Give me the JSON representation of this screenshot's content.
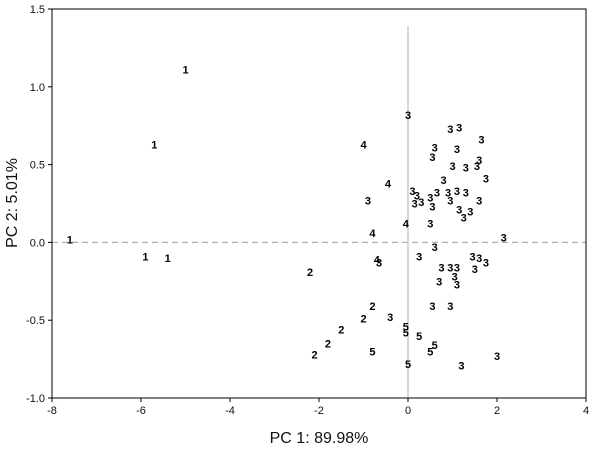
{
  "chart_data": {
    "type": "scatter",
    "title": "",
    "xlabel": "PC 1: 89.98%",
    "ylabel": "PC 2: 5.01%",
    "xlim": [
      -8,
      4
    ],
    "ylim": [
      -1.0,
      1.5
    ],
    "x_ticks": [
      "-8",
      "-6",
      "-4",
      "-2",
      "0",
      "2",
      "4"
    ],
    "y_ticks": [
      "1.5",
      "1.0",
      "0.5",
      "0.0",
      "-0.5",
      "-1.0"
    ],
    "grid": false,
    "reference_lines": {
      "x": 0,
      "y": 0
    },
    "colors": {
      "frame": "#000000",
      "vertical_reference": "#b0b0b0",
      "horizontal_reference": "#b0b0b0",
      "points": "#000000"
    },
    "points": [
      {
        "x": -5.0,
        "y": 1.11,
        "label": "1"
      },
      {
        "x": -5.7,
        "y": 0.63,
        "label": "1"
      },
      {
        "x": -7.6,
        "y": 0.02,
        "label": "1"
      },
      {
        "x": -5.9,
        "y": -0.09,
        "label": "1"
      },
      {
        "x": -5.4,
        "y": -0.1,
        "label": "1"
      },
      {
        "x": -2.2,
        "y": -0.19,
        "label": "2"
      },
      {
        "x": -0.8,
        "y": -0.41,
        "label": "2"
      },
      {
        "x": -1.0,
        "y": -0.49,
        "label": "2"
      },
      {
        "x": -1.5,
        "y": -0.56,
        "label": "2"
      },
      {
        "x": -1.8,
        "y": -0.65,
        "label": "2"
      },
      {
        "x": -2.1,
        "y": -0.72,
        "label": "2"
      },
      {
        "x": -0.4,
        "y": -0.48,
        "label": "3"
      },
      {
        "x": -0.65,
        "y": -0.13,
        "label": "3"
      },
      {
        "x": 0.0,
        "y": 0.82,
        "label": "3"
      },
      {
        "x": 0.95,
        "y": 0.73,
        "label": "3"
      },
      {
        "x": 1.15,
        "y": 0.74,
        "label": "3"
      },
      {
        "x": 1.65,
        "y": 0.66,
        "label": "3"
      },
      {
        "x": 0.6,
        "y": 0.61,
        "label": "3"
      },
      {
        "x": 1.1,
        "y": 0.6,
        "label": "3"
      },
      {
        "x": 0.55,
        "y": 0.55,
        "label": "3"
      },
      {
        "x": 1.6,
        "y": 0.53,
        "label": "3"
      },
      {
        "x": 1.0,
        "y": 0.49,
        "label": "3"
      },
      {
        "x": 1.3,
        "y": 0.48,
        "label": "3"
      },
      {
        "x": 1.55,
        "y": 0.49,
        "label": "3"
      },
      {
        "x": 0.8,
        "y": 0.4,
        "label": "3"
      },
      {
        "x": 1.75,
        "y": 0.41,
        "label": "3"
      },
      {
        "x": 0.1,
        "y": 0.33,
        "label": "3"
      },
      {
        "x": 0.65,
        "y": 0.32,
        "label": "3"
      },
      {
        "x": 0.9,
        "y": 0.32,
        "label": "3"
      },
      {
        "x": 1.1,
        "y": 0.33,
        "label": "3"
      },
      {
        "x": 1.3,
        "y": 0.32,
        "label": "3"
      },
      {
        "x": 0.2,
        "y": 0.3,
        "label": "3"
      },
      {
        "x": 0.5,
        "y": 0.29,
        "label": "3"
      },
      {
        "x": 0.15,
        "y": 0.25,
        "label": "3"
      },
      {
        "x": 0.3,
        "y": 0.26,
        "label": "3"
      },
      {
        "x": -0.9,
        "y": 0.27,
        "label": "3"
      },
      {
        "x": 0.95,
        "y": 0.27,
        "label": "3"
      },
      {
        "x": 1.6,
        "y": 0.27,
        "label": "3"
      },
      {
        "x": 0.55,
        "y": 0.23,
        "label": "3"
      },
      {
        "x": 1.15,
        "y": 0.21,
        "label": "3"
      },
      {
        "x": 1.4,
        "y": 0.2,
        "label": "3"
      },
      {
        "x": 1.25,
        "y": 0.16,
        "label": "3"
      },
      {
        "x": 0.5,
        "y": 0.12,
        "label": "3"
      },
      {
        "x": 2.15,
        "y": 0.03,
        "label": "3"
      },
      {
        "x": 0.6,
        "y": -0.03,
        "label": "3"
      },
      {
        "x": 0.25,
        "y": -0.09,
        "label": "3"
      },
      {
        "x": 1.45,
        "y": -0.09,
        "label": "3"
      },
      {
        "x": 1.6,
        "y": -0.1,
        "label": "3"
      },
      {
        "x": 1.75,
        "y": -0.13,
        "label": "3"
      },
      {
        "x": 0.75,
        "y": -0.16,
        "label": "3"
      },
      {
        "x": 0.95,
        "y": -0.16,
        "label": "3"
      },
      {
        "x": 1.1,
        "y": -0.16,
        "label": "3"
      },
      {
        "x": 1.5,
        "y": -0.17,
        "label": "3"
      },
      {
        "x": 1.05,
        "y": -0.22,
        "label": "3"
      },
      {
        "x": 0.7,
        "y": -0.25,
        "label": "3"
      },
      {
        "x": 1.1,
        "y": -0.27,
        "label": "3"
      },
      {
        "x": 0.55,
        "y": -0.41,
        "label": "3"
      },
      {
        "x": 0.95,
        "y": -0.41,
        "label": "3"
      },
      {
        "x": 2.0,
        "y": -0.73,
        "label": "3"
      },
      {
        "x": 1.2,
        "y": -0.79,
        "label": "3"
      },
      {
        "x": -1.0,
        "y": 0.63,
        "label": "4"
      },
      {
        "x": -0.45,
        "y": 0.38,
        "label": "4"
      },
      {
        "x": -0.05,
        "y": 0.12,
        "label": "4"
      },
      {
        "x": -0.8,
        "y": 0.06,
        "label": "4"
      },
      {
        "x": -0.7,
        "y": -0.11,
        "label": "4"
      },
      {
        "x": -0.05,
        "y": -0.54,
        "label": "5"
      },
      {
        "x": -0.05,
        "y": -0.58,
        "label": "5"
      },
      {
        "x": 0.25,
        "y": -0.6,
        "label": "5"
      },
      {
        "x": 0.6,
        "y": -0.66,
        "label": "5"
      },
      {
        "x": 0.5,
        "y": -0.7,
        "label": "5"
      },
      {
        "x": -0.8,
        "y": -0.7,
        "label": "5"
      },
      {
        "x": 0.0,
        "y": -0.78,
        "label": "5"
      }
    ]
  }
}
